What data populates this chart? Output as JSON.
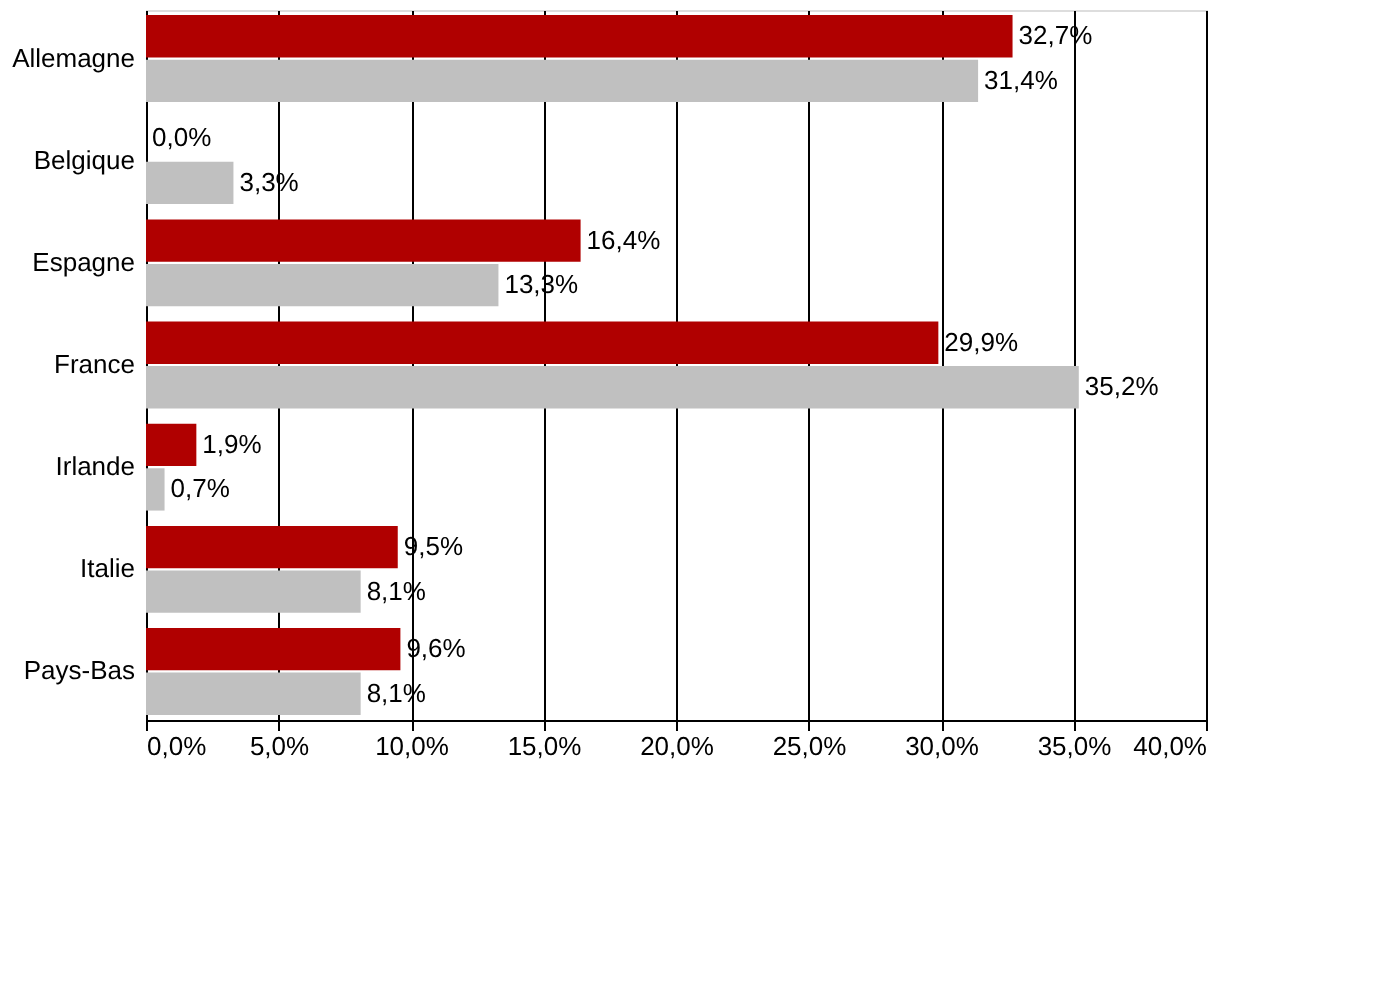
{
  "chart_data": {
    "type": "bar",
    "orientation": "horizontal",
    "categories": [
      "Allemagne",
      "Belgique",
      "Espagne",
      "France",
      "Irlande",
      "Italie",
      "Pays-Bas"
    ],
    "series": [
      {
        "color": "#b00000",
        "values": [
          32.7,
          0.0,
          16.4,
          29.9,
          1.9,
          9.5,
          9.6
        ],
        "value_labels": [
          "32,7%",
          "0,0%",
          "16,4%",
          "29,9%",
          "1,9%",
          "9,5%",
          "9,6%"
        ]
      },
      {
        "color": "#c0c0c0",
        "values": [
          31.4,
          3.3,
          13.3,
          35.2,
          0.7,
          8.1,
          8.1
        ],
        "value_labels": [
          "31,4%",
          "3,3%",
          "13,3%",
          "35,2%",
          "0,7%",
          "8,1%",
          "8,1%"
        ]
      }
    ],
    "xlim": [
      0,
      40
    ],
    "xticks": [
      {
        "value": 0,
        "label": "0,0%"
      },
      {
        "value": 5,
        "label": "5,0%"
      },
      {
        "value": 10,
        "label": "10,0%"
      },
      {
        "value": 15,
        "label": "15,0%"
      },
      {
        "value": 20,
        "label": "20,0%"
      },
      {
        "value": 25,
        "label": "25,0%"
      },
      {
        "value": 30,
        "label": "30,0%"
      },
      {
        "value": 35,
        "label": "35,0%"
      },
      {
        "value": 40,
        "label": "40,0%"
      }
    ],
    "grid": "x",
    "legend": false
  }
}
